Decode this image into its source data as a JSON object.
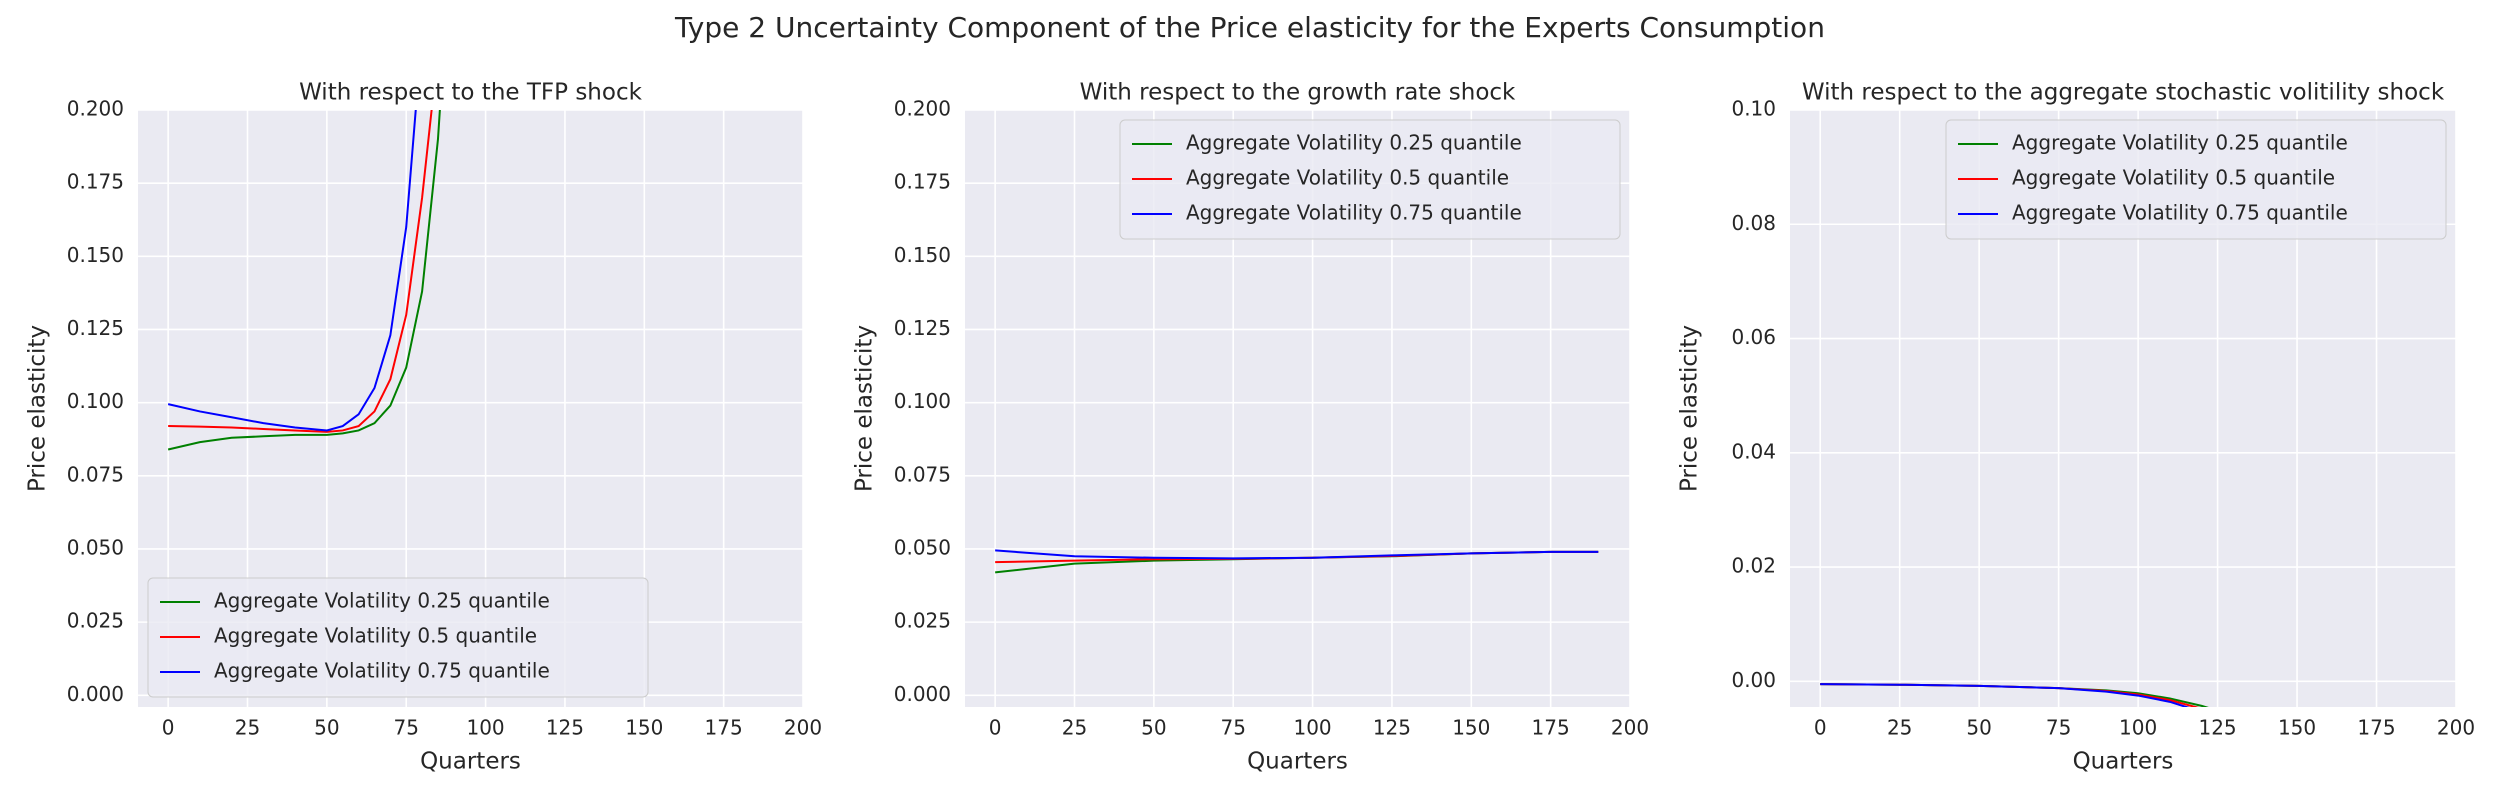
{
  "title": "Type 2 Uncertainty Component of the Price elasticity for the Experts Consumption",
  "chart_data": [
    {
      "type": "line",
      "title": "With respect to the TFP shock",
      "xlabel": "Quarters",
      "ylabel": "Price elasticity",
      "xlim": [
        -9.5,
        200
      ],
      "ylim": [
        -0.004,
        0.2
      ],
      "grid": true,
      "legend": "lower left",
      "xticks": [
        0,
        25,
        50,
        75,
        100,
        125,
        150,
        175,
        200
      ],
      "yticks": [
        {
          "value": 0,
          "label": "0.000"
        },
        {
          "value": 0.025,
          "label": "0.025"
        },
        {
          "value": 0.05,
          "label": "0.050"
        },
        {
          "value": 0.075,
          "label": "0.075"
        },
        {
          "value": 0.1,
          "label": "0.100"
        },
        {
          "value": 0.125,
          "label": "0.125"
        },
        {
          "value": 0.15,
          "label": "0.150"
        },
        {
          "value": 0.175,
          "label": "0.175"
        },
        {
          "value": 0.2,
          "label": "0.200"
        }
      ],
      "series": [
        {
          "name": "Aggregate Volatility 0.25 quantile",
          "color": "#008000",
          "x": [
            0,
            10,
            20,
            30,
            40,
            50,
            55,
            60,
            65,
            70,
            75,
            80,
            85,
            88
          ],
          "values": [
            0.084,
            0.0865,
            0.088,
            0.0885,
            0.089,
            0.089,
            0.0895,
            0.0905,
            0.093,
            0.099,
            0.112,
            0.138,
            0.19,
            0.24
          ]
        },
        {
          "name": "Aggregate Volatility 0.5 quantile",
          "color": "#ff0000",
          "x": [
            0,
            10,
            20,
            30,
            40,
            50,
            55,
            60,
            65,
            70,
            75,
            80,
            83,
            86
          ],
          "values": [
            0.092,
            0.0918,
            0.0915,
            0.091,
            0.0905,
            0.09,
            0.0905,
            0.092,
            0.097,
            0.108,
            0.13,
            0.17,
            0.2,
            0.24
          ]
        },
        {
          "name": "Aggregate Volatility 0.75 quantile",
          "color": "#0000ff",
          "x": [
            0,
            10,
            20,
            30,
            40,
            50,
            55,
            60,
            65,
            70,
            75,
            78,
            81
          ],
          "values": [
            0.0995,
            0.097,
            0.095,
            0.093,
            0.0915,
            0.0905,
            0.092,
            0.096,
            0.105,
            0.123,
            0.16,
            0.2,
            0.24
          ]
        }
      ]
    },
    {
      "type": "line",
      "title": "With respect to the growth rate shock",
      "xlabel": "Quarters",
      "ylabel": "Price elasticity",
      "xlim": [
        -9.5,
        200
      ],
      "ylim": [
        -0.004,
        0.2
      ],
      "grid": true,
      "legend": "upper right",
      "xticks": [
        0,
        25,
        50,
        75,
        100,
        125,
        150,
        175,
        200
      ],
      "yticks": [
        {
          "value": 0,
          "label": "0.000"
        },
        {
          "value": 0.025,
          "label": "0.025"
        },
        {
          "value": 0.05,
          "label": "0.050"
        },
        {
          "value": 0.075,
          "label": "0.075"
        },
        {
          "value": 0.1,
          "label": "0.100"
        },
        {
          "value": 0.125,
          "label": "0.125"
        },
        {
          "value": 0.15,
          "label": "0.150"
        },
        {
          "value": 0.175,
          "label": "0.175"
        },
        {
          "value": 0.2,
          "label": "0.200"
        }
      ],
      "series": [
        {
          "name": "Aggregate Volatility 0.25 quantile",
          "color": "#008000",
          "x": [
            0,
            25,
            50,
            75,
            100,
            125,
            150,
            175,
            190
          ],
          "values": [
            0.042,
            0.045,
            0.046,
            0.0465,
            0.047,
            0.0475,
            0.0485,
            0.049,
            0.049
          ]
        },
        {
          "name": "Aggregate Volatility 0.5 quantile",
          "color": "#ff0000",
          "x": [
            0,
            25,
            50,
            75,
            100,
            125,
            150,
            175,
            190
          ],
          "values": [
            0.0455,
            0.046,
            0.0465,
            0.0466,
            0.047,
            0.0476,
            0.0485,
            0.049,
            0.049
          ]
        },
        {
          "name": "Aggregate Volatility 0.75 quantile",
          "color": "#0000ff",
          "x": [
            0,
            25,
            50,
            75,
            100,
            125,
            150,
            175,
            190
          ],
          "values": [
            0.0495,
            0.0475,
            0.047,
            0.0468,
            0.047,
            0.0478,
            0.0485,
            0.049,
            0.049
          ]
        }
      ]
    },
    {
      "type": "line",
      "title": "With respect to the aggregate stochastic volitility shock",
      "xlabel": "Quarters",
      "ylabel": "Price elasticity",
      "xlim": [
        -9.5,
        200
      ],
      "ylim": [
        -0.0045,
        0.1
      ],
      "grid": true,
      "legend": "upper right",
      "xticks": [
        0,
        25,
        50,
        75,
        100,
        125,
        150,
        175,
        200
      ],
      "yticks": [
        {
          "value": 0,
          "label": "0.00"
        },
        {
          "value": 0.02,
          "label": "0.02"
        },
        {
          "value": 0.04,
          "label": "0.04"
        },
        {
          "value": 0.06,
          "label": "0.06"
        },
        {
          "value": 0.08,
          "label": "0.08"
        },
        {
          "value": 0.1,
          "label": "0.10"
        }
      ],
      "series": [
        {
          "name": "Aggregate Volatility 0.25 quantile",
          "color": "#008000",
          "x": [
            0,
            25,
            50,
            75,
            90,
            100,
            110,
            120,
            130
          ],
          "values": [
            -0.0005,
            -0.0006,
            -0.0008,
            -0.0012,
            -0.0016,
            -0.0021,
            -0.003,
            -0.0043,
            -0.006
          ]
        },
        {
          "name": "Aggregate Volatility 0.5 quantile",
          "color": "#ff0000",
          "x": [
            0,
            25,
            50,
            75,
            90,
            100,
            110,
            120,
            128
          ],
          "values": [
            -0.0005,
            -0.0006,
            -0.0008,
            -0.0012,
            -0.0017,
            -0.0023,
            -0.0033,
            -0.0048,
            -0.006
          ]
        },
        {
          "name": "Aggregate Volatility 0.75 quantile",
          "color": "#0000ff",
          "x": [
            0,
            25,
            50,
            75,
            90,
            100,
            110,
            118,
            125
          ],
          "values": [
            -0.0005,
            -0.0006,
            -0.0008,
            -0.0012,
            -0.0018,
            -0.0025,
            -0.0036,
            -0.005,
            -0.0065
          ]
        }
      ]
    }
  ]
}
